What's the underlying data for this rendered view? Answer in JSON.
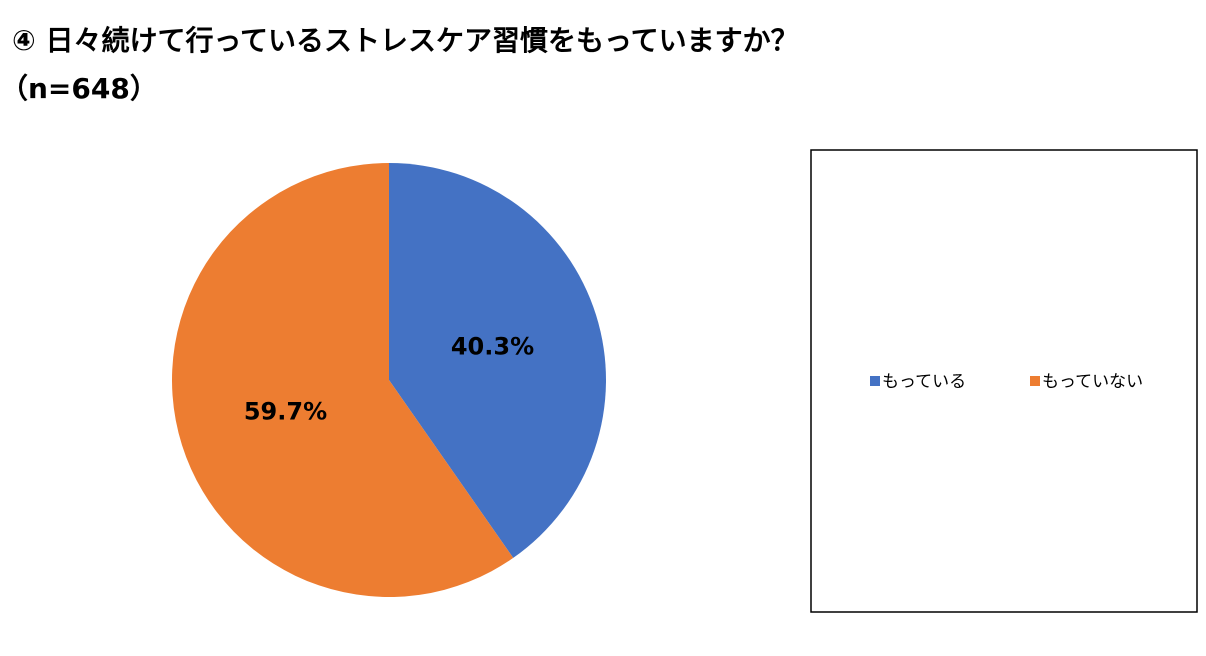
{
  "chart_data": {
    "type": "pie",
    "title": "④ 日々続けて行っているストレスケア習慣をもっていますか？",
    "subtitle": "（n=648）",
    "categories": [
      "もっている",
      "もっていない"
    ],
    "values": [
      40.3,
      59.7
    ],
    "value_labels": [
      "40.3%",
      "59.7%"
    ],
    "colors": [
      "#4472c4",
      "#ed7d31"
    ]
  }
}
